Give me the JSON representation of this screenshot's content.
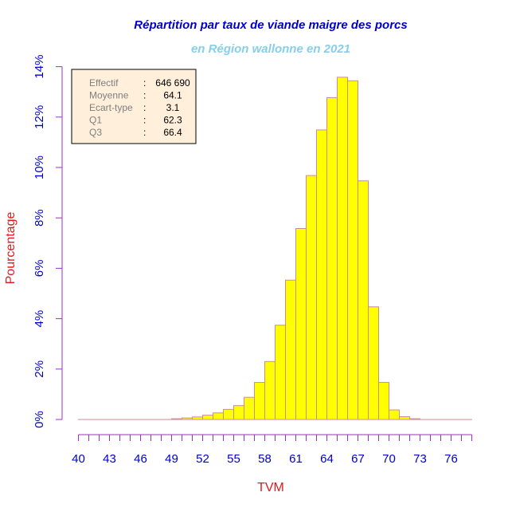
{
  "chart_data": {
    "type": "bar",
    "title": "Répartition par taux de viande maigre des porcs",
    "subtitle": "en Région wallonne en 2021",
    "xlabel": "TVM",
    "ylabel": "Pourcentage",
    "xlim": [
      40,
      78
    ],
    "ylim": [
      0,
      14
    ],
    "x_ticks": [
      "40",
      "43",
      "46",
      "49",
      "52",
      "55",
      "58",
      "61",
      "64",
      "67",
      "70",
      "73",
      "76"
    ],
    "y_ticks": [
      "0%",
      "2%",
      "4%",
      "6%",
      "8%",
      "10%",
      "12%",
      "14%"
    ],
    "bin_width": 1,
    "bins": [
      {
        "start": 40,
        "value": 0.0
      },
      {
        "start": 41,
        "value": 0.0
      },
      {
        "start": 42,
        "value": 0.0
      },
      {
        "start": 43,
        "value": 0.0
      },
      {
        "start": 44,
        "value": 0.0
      },
      {
        "start": 45,
        "value": 0.0
      },
      {
        "start": 46,
        "value": 0.0
      },
      {
        "start": 47,
        "value": 0.0
      },
      {
        "start": 48,
        "value": 0.0
      },
      {
        "start": 49,
        "value": 0.03
      },
      {
        "start": 50,
        "value": 0.06
      },
      {
        "start": 51,
        "value": 0.1
      },
      {
        "start": 52,
        "value": 0.17
      },
      {
        "start": 53,
        "value": 0.26
      },
      {
        "start": 54,
        "value": 0.4
      },
      {
        "start": 55,
        "value": 0.55
      },
      {
        "start": 56,
        "value": 0.88
      },
      {
        "start": 57,
        "value": 1.47
      },
      {
        "start": 58,
        "value": 2.3
      },
      {
        "start": 59,
        "value": 3.74
      },
      {
        "start": 60,
        "value": 5.53
      },
      {
        "start": 61,
        "value": 7.58
      },
      {
        "start": 62,
        "value": 9.68
      },
      {
        "start": 63,
        "value": 11.49
      },
      {
        "start": 64,
        "value": 12.77
      },
      {
        "start": 65,
        "value": 13.58
      },
      {
        "start": 66,
        "value": 13.44
      },
      {
        "start": 67,
        "value": 9.47
      },
      {
        "start": 68,
        "value": 4.47
      },
      {
        "start": 69,
        "value": 1.47
      },
      {
        "start": 70,
        "value": 0.38
      },
      {
        "start": 71,
        "value": 0.11
      },
      {
        "start": 72,
        "value": 0.03
      },
      {
        "start": 73,
        "value": 0.0
      },
      {
        "start": 74,
        "value": 0.0
      },
      {
        "start": 75,
        "value": 0.0
      },
      {
        "start": 76,
        "value": 0.0
      },
      {
        "start": 77,
        "value": 0.0
      }
    ],
    "stats": [
      {
        "label": "Effectif",
        "sep": ":",
        "value": "646 690"
      },
      {
        "label": "Moyenne",
        "sep": ":",
        "value": "64.1"
      },
      {
        "label": "Ecart-type",
        "sep": ":",
        "value": "3.1"
      },
      {
        "label": "Q1",
        "sep": ":",
        "value": "62.3"
      },
      {
        "label": "Q3",
        "sep": ":",
        "value": "66.4"
      }
    ],
    "colors": {
      "bar_fill": "#ffff00",
      "bar_stroke": "#cd8c95",
      "axis": "#9932cc",
      "tick_label": "#0000cd",
      "title": "#0000cd",
      "subtitle": "#87ceeb",
      "xlabel": "#e31a1c",
      "ylabel": "#e31a1c",
      "legend_bg": "#ffefdb",
      "legend_label": "#7f7f7f",
      "legend_value": "#000000"
    },
    "grid": false,
    "legend_position": "top-left"
  }
}
